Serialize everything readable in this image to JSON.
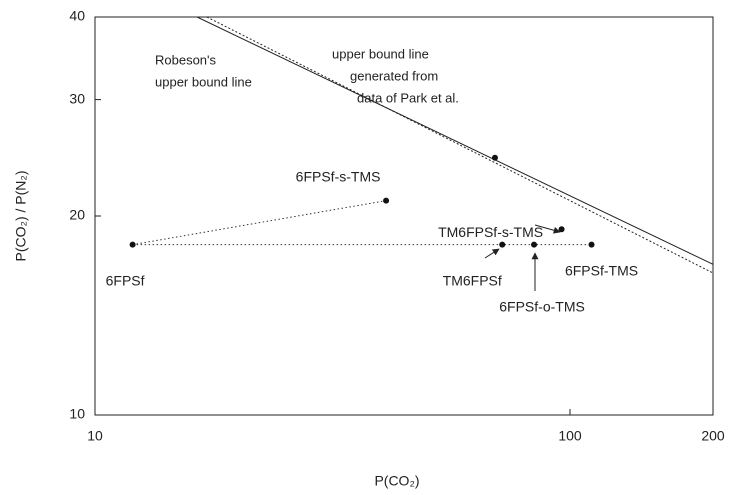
{
  "chart_data": {
    "type": "scatter",
    "xlabel": "P(CO₂)",
    "ylabel": "P(CO₂) / P(N₂)",
    "xlim": [
      10,
      200
    ],
    "ylim": [
      10,
      40
    ],
    "xticks": [
      10,
      100,
      200
    ],
    "yticks": [
      10,
      20,
      30,
      40
    ],
    "log_x": true,
    "log_y": true,
    "color": "#111111",
    "points": {
      "labels": [
        "6FPSf",
        "6FPSf-s-TMS",
        "TM6FPSf",
        "6FPSf-o-TMS",
        "6FPSf-TMS",
        "TM6FPSf-s-TMS",
        null
      ],
      "x": [
        12.0,
        41,
        72,
        84,
        111,
        96,
        69.5
      ],
      "y": [
        18.1,
        21.1,
        18.1,
        18.1,
        18.1,
        19.1,
        24.5
      ]
    },
    "lines": [
      {
        "style": "solid",
        "x": [
          16.4,
          200
        ],
        "y": [
          40,
          16.9
        ]
      },
      {
        "style": "dotted",
        "x": [
          17.2,
          200
        ],
        "y": [
          40,
          16.4
        ]
      }
    ],
    "annotations": [
      [
        "Robeson's",
        "upper bound line"
      ],
      [
        "upper bound line",
        "generated from",
        "data of Park et al."
      ]
    ]
  }
}
